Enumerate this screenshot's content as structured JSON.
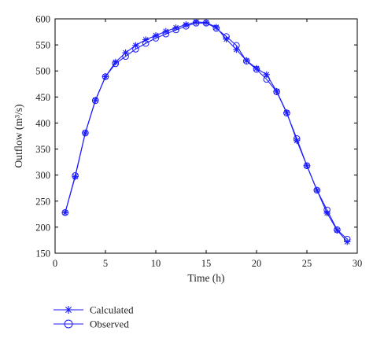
{
  "chart_data": {
    "type": "line",
    "xlabel": "Time (h)",
    "ylabel": "Outflow (m³/s)",
    "xlim": [
      0,
      30
    ],
    "ylim": [
      150,
      600
    ],
    "xticks": [
      "0",
      "5",
      "10",
      "15",
      "20",
      "25",
      "30"
    ],
    "yticks": [
      "150",
      "200",
      "250",
      "300",
      "350",
      "400",
      "450",
      "500",
      "550",
      "600"
    ],
    "grid": false,
    "legend_position": "bottom-left, below plot",
    "colors": {
      "series": "#1a1aff",
      "axes": "#000000"
    },
    "x": [
      1,
      2,
      3,
      4,
      5,
      6,
      7,
      8,
      9,
      10,
      11,
      12,
      13,
      14,
      15,
      16,
      17,
      18,
      19,
      20,
      21,
      22,
      23,
      24,
      25,
      26,
      27,
      28,
      29
    ],
    "series": [
      {
        "name": "Calculated",
        "marker": "asterisk",
        "values": [
          228,
          297,
          381,
          444,
          489,
          517,
          535,
          549,
          560,
          568,
          576,
          583,
          589,
          594,
          593,
          584,
          561,
          541,
          520,
          505,
          493,
          461,
          420,
          366,
          318,
          271,
          227,
          194,
          172
        ]
      },
      {
        "name": "Observed",
        "marker": "circle",
        "values": [
          228,
          299,
          381,
          443,
          489,
          514,
          528,
          542,
          553,
          563,
          571,
          579,
          586,
          592,
          592,
          582,
          566,
          549,
          519,
          503,
          484,
          460,
          419,
          370,
          318,
          271,
          233,
          195,
          177
        ]
      }
    ]
  }
}
